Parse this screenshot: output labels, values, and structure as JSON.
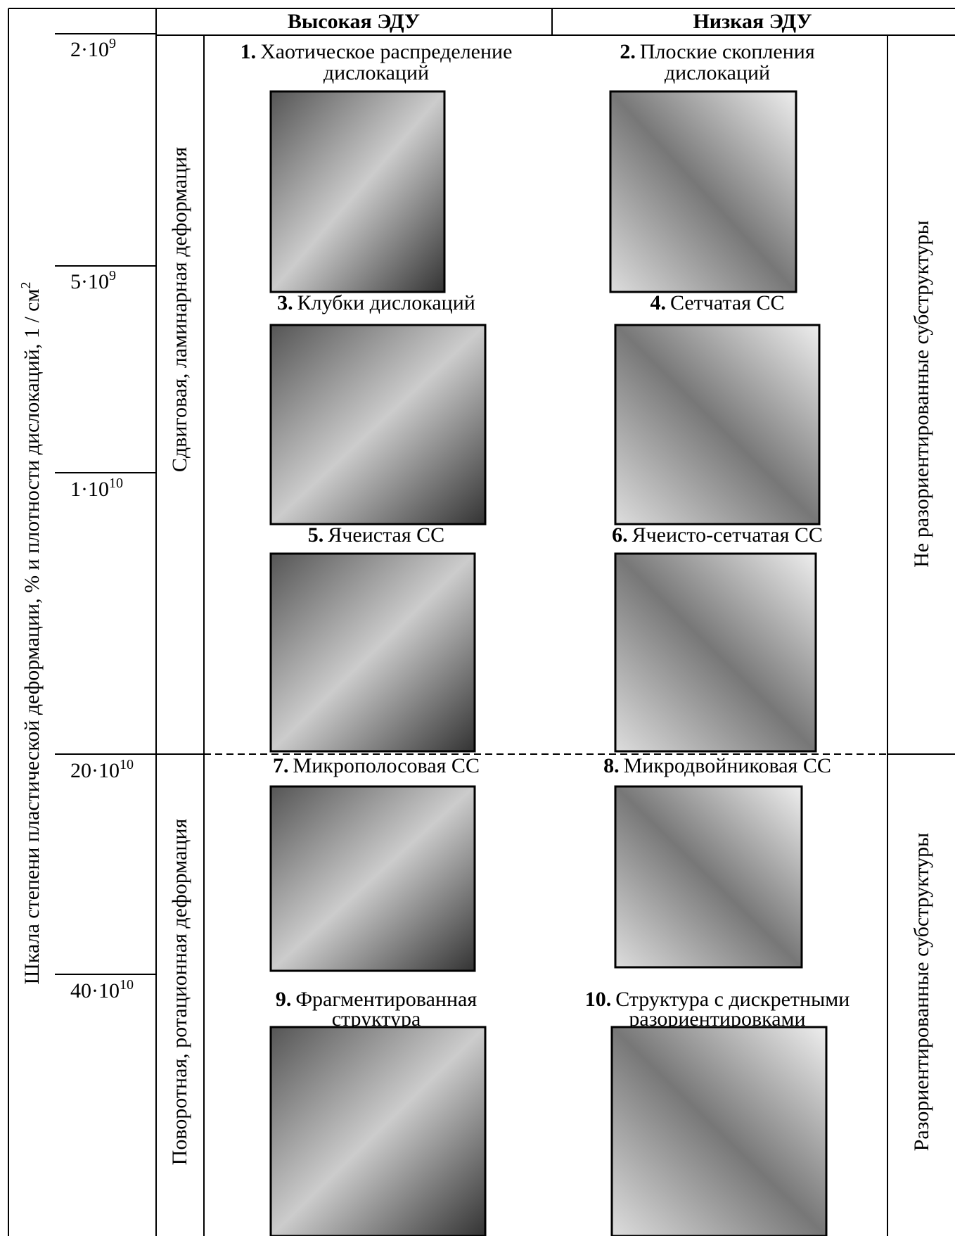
{
  "header": {
    "high": "Высокая ЭДУ",
    "low": "Низкая ЭДУ"
  },
  "scale": {
    "label": "Шкала степени пластической деформации, %  и  плотности дислокаций, 1 / см",
    "label_sup": "2",
    "ticks": [
      {
        "base": "2·10",
        "exp": "9"
      },
      {
        "base": "5·10",
        "exp": "9"
      },
      {
        "base": "1·10",
        "exp": "10"
      },
      {
        "base": "20·10",
        "exp": "10"
      },
      {
        "base": "40·10",
        "exp": "10"
      }
    ]
  },
  "deformation": [
    "Сдвиговая, ламинарная деформация",
    "Поворотная, ротационная  деформация"
  ],
  "substructures": [
    "Не  разориентированные  субструктуры",
    "Разориентированные  субструктуры"
  ],
  "cells": [
    {
      "number": "1.",
      "title": [
        "Хаотическое распределение",
        "дислокаций"
      ]
    },
    {
      "number": "2.",
      "title": [
        "Плоские скопления",
        "дислокаций"
      ]
    },
    {
      "number": "3.",
      "title": [
        "Клубки дислокаций"
      ]
    },
    {
      "number": "4.",
      "title": [
        "Сетчатая СС"
      ]
    },
    {
      "number": "5.",
      "title": [
        "Ячеистая СС"
      ]
    },
    {
      "number": "6.",
      "title": [
        "Ячеисто-сетчатая СС"
      ]
    },
    {
      "number": "7.",
      "title": [
        "Микрополосовая СС"
      ]
    },
    {
      "number": "8.",
      "title": [
        "Микродвойниковая СС"
      ]
    },
    {
      "number": "9.",
      "title": [
        "Фрагментированная",
        "структура"
      ]
    },
    {
      "number": "10.",
      "title": [
        "Структура с дискретными",
        "разориентировками"
      ]
    }
  ]
}
